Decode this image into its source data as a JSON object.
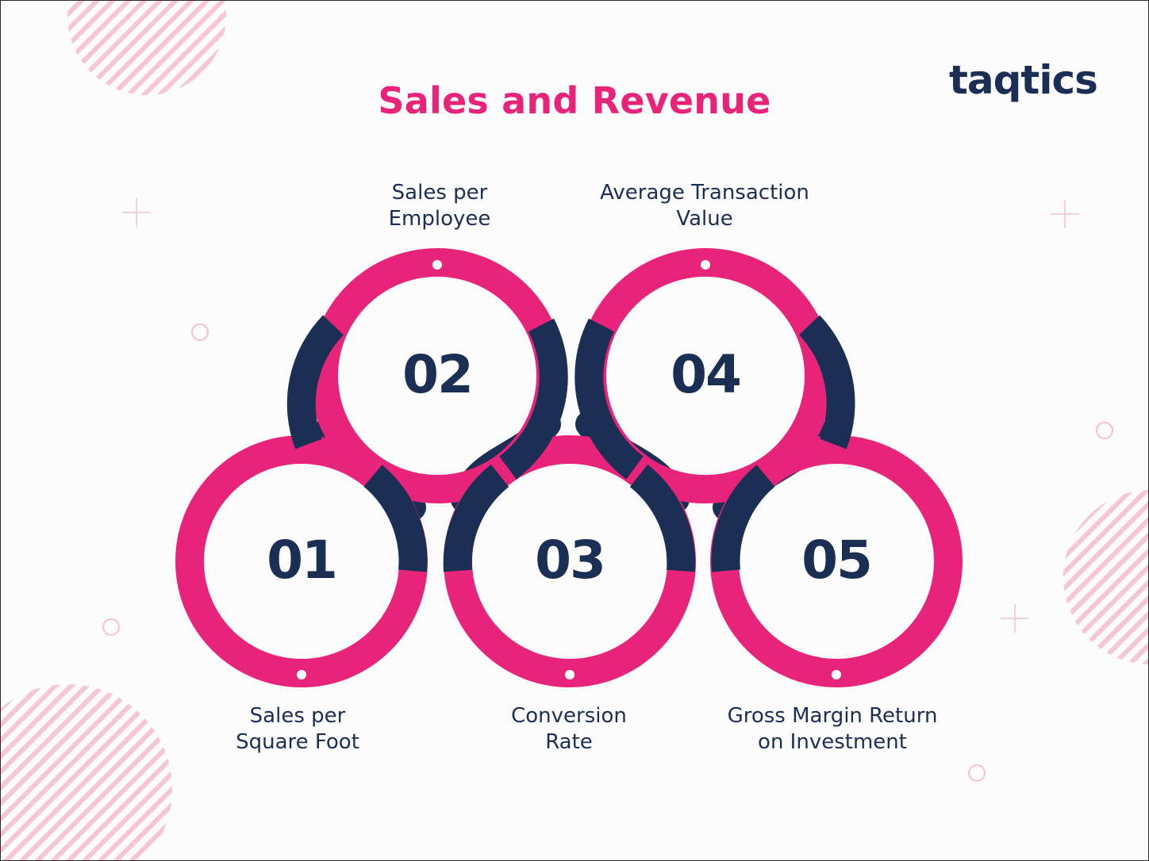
{
  "title": "Sales and Revenue",
  "brand": {
    "logo_text": "taqtics"
  },
  "colors": {
    "pink": "#e8247a",
    "navy": "#1b2f55",
    "stripe": "#f6c3d3"
  },
  "steps": [
    {
      "number": "01",
      "label_line1": "Sales per",
      "label_line2": "Square Foot"
    },
    {
      "number": "02",
      "label_line1": "Sales per",
      "label_line2": "Employee"
    },
    {
      "number": "03",
      "label_line1": "Conversion",
      "label_line2": "Rate"
    },
    {
      "number": "04",
      "label_line1": "Average Transaction",
      "label_line2": "Value"
    },
    {
      "number": "05",
      "label_line1": "Gross Margin Return",
      "label_line2": "on Investment"
    }
  ]
}
